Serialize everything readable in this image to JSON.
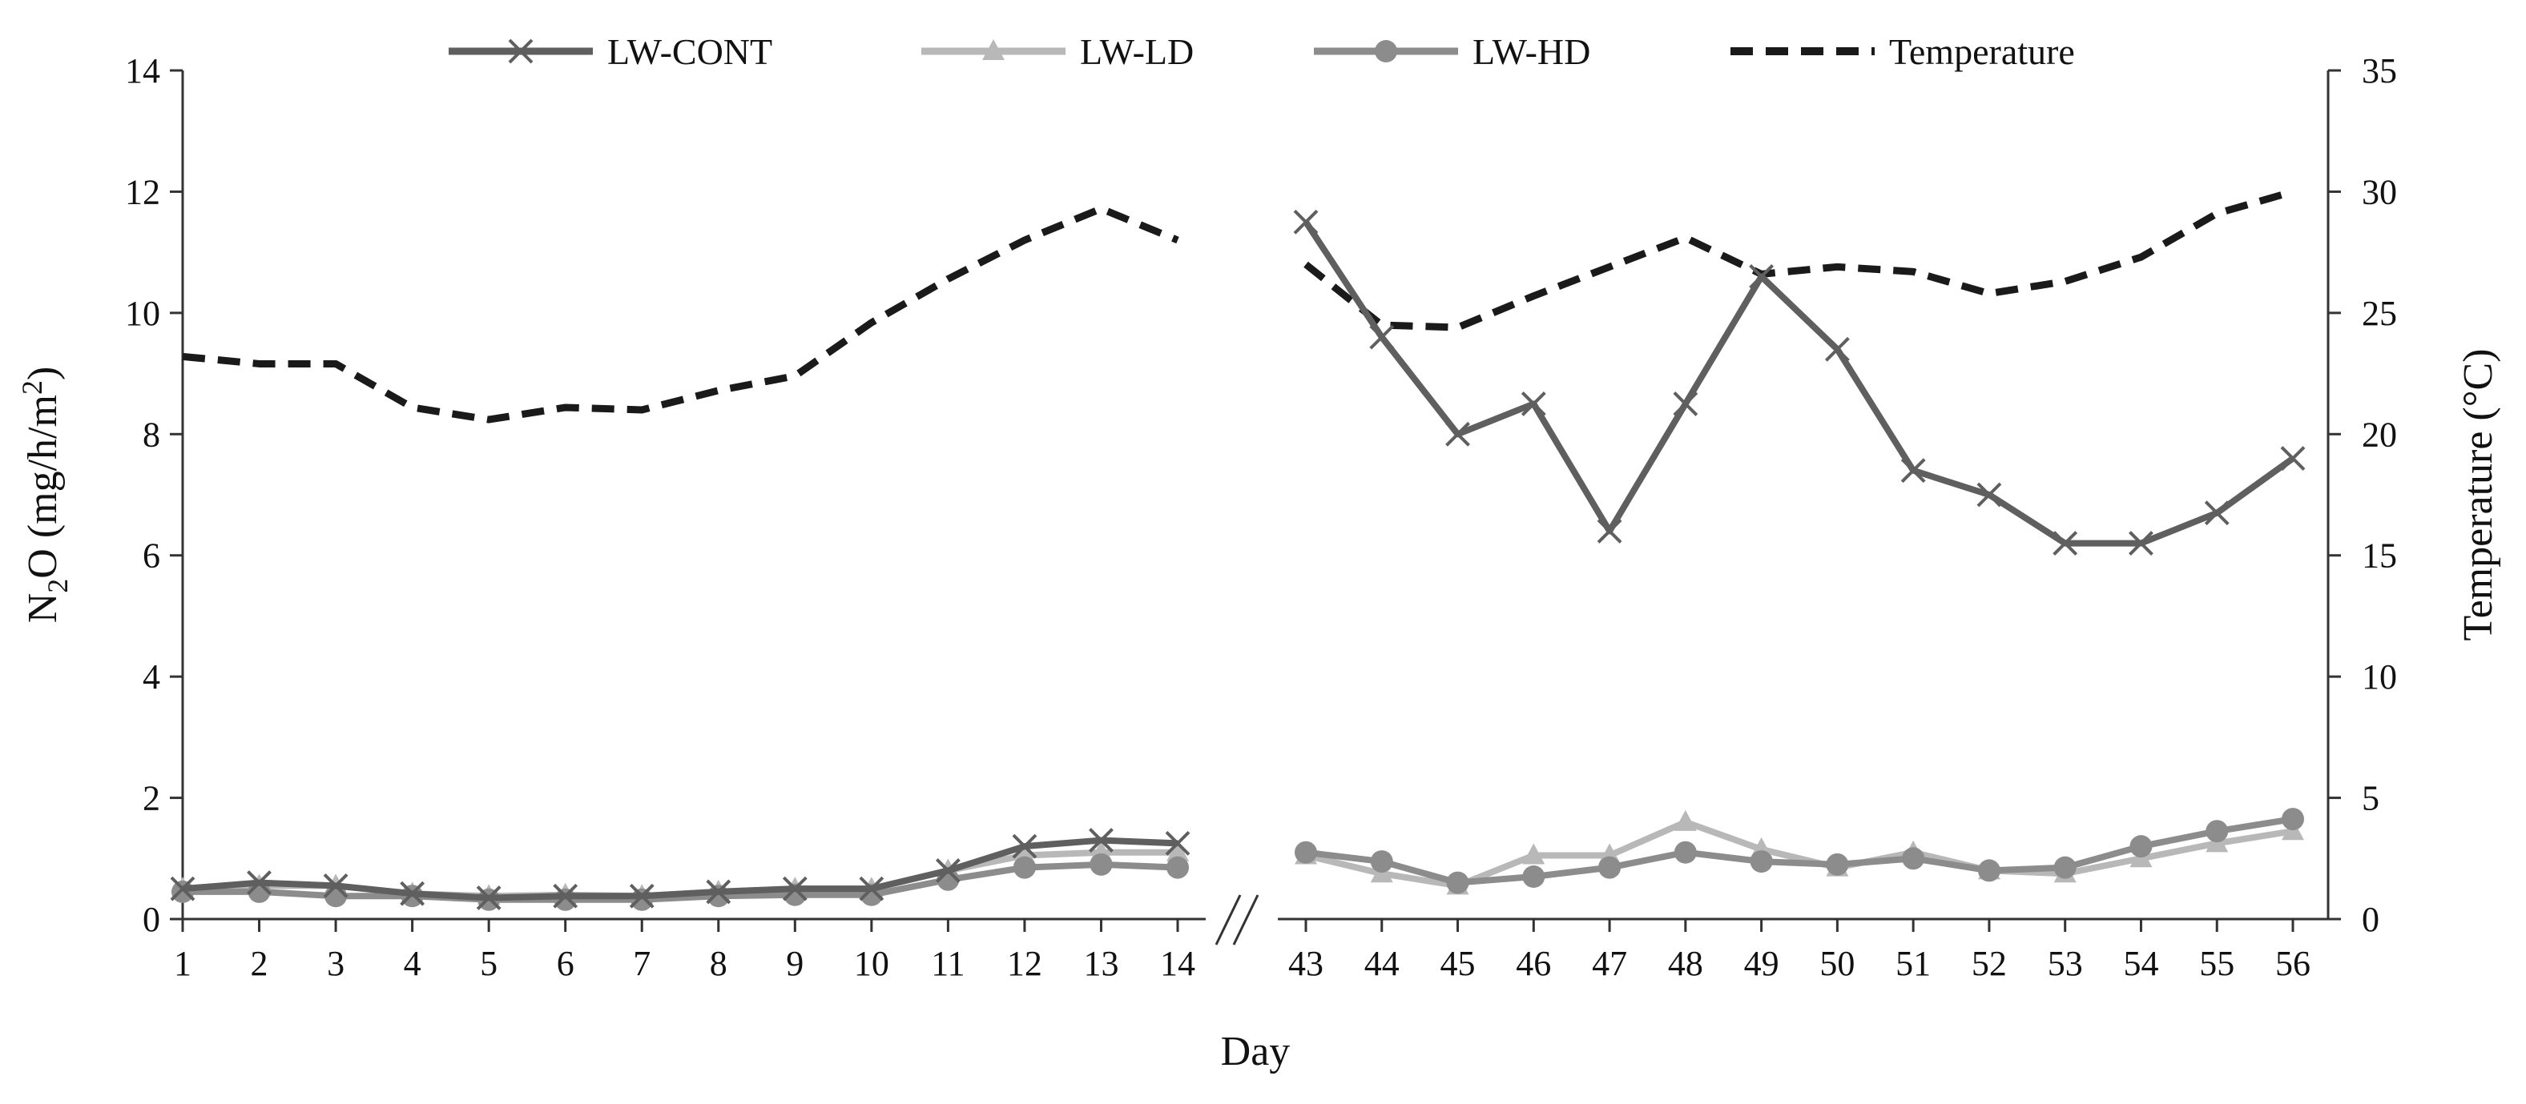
{
  "chart_data": {
    "type": "line",
    "title": "",
    "xlabel": "Day",
    "ylabel_left": {
      "main": "N",
      "sub": "2",
      "rest": "O (mg/h/m",
      "sup": "2",
      "close": ")"
    },
    "ylabel_right": "Temperature (°C)",
    "y_left_lim": [
      0,
      14
    ],
    "y_left_ticks": [
      "0",
      "2",
      "4",
      "6",
      "8",
      "10",
      "12",
      "14"
    ],
    "y_right_lim": [
      0,
      35
    ],
    "y_right_ticks": [
      "0",
      "5",
      "10",
      "15",
      "20",
      "25",
      "30",
      "35"
    ],
    "x_segments": [
      {
        "categories": [
          "1",
          "2",
          "3",
          "4",
          "5",
          "6",
          "7",
          "8",
          "9",
          "10",
          "11",
          "12",
          "13",
          "14"
        ]
      },
      {
        "categories": [
          "43",
          "44",
          "45",
          "46",
          "47",
          "48",
          "49",
          "50",
          "51",
          "52",
          "53",
          "54",
          "55",
          "56"
        ]
      }
    ],
    "axis_break_symbol": "//",
    "legend_position": "top",
    "series": [
      {
        "name": "LW-CONT",
        "axis": "left",
        "color": "#5f5f5f",
        "marker": "x",
        "style": "solid",
        "segments": [
          [
            0.5,
            0.6,
            0.55,
            0.42,
            0.35,
            0.38,
            0.38,
            0.45,
            0.5,
            0.5,
            0.8,
            1.2,
            1.3,
            1.25
          ],
          [
            11.5,
            9.6,
            8.0,
            8.5,
            6.4,
            8.5,
            10.6,
            9.4,
            7.4,
            7.0,
            6.2,
            6.2,
            6.7,
            7.6
          ]
        ]
      },
      {
        "name": "LW-LD",
        "axis": "left",
        "color": "#b8b8b8",
        "marker": "triangle",
        "style": "solid",
        "segments": [
          [
            0.5,
            0.55,
            0.55,
            0.42,
            0.38,
            0.4,
            0.38,
            0.45,
            0.5,
            0.5,
            0.8,
            1.05,
            1.1,
            1.1
          ],
          [
            1.05,
            0.75,
            0.55,
            1.05,
            1.05,
            1.6,
            1.15,
            0.85,
            1.1,
            0.8,
            0.75,
            1.0,
            1.25,
            1.45
          ]
        ]
      },
      {
        "name": "LW-HD",
        "axis": "left",
        "color": "#8c8c8c",
        "marker": "circle",
        "style": "solid",
        "segments": [
          [
            0.45,
            0.45,
            0.38,
            0.38,
            0.32,
            0.32,
            0.32,
            0.38,
            0.4,
            0.4,
            0.65,
            0.85,
            0.9,
            0.85
          ],
          [
            1.1,
            0.95,
            0.6,
            0.7,
            0.85,
            1.1,
            0.95,
            0.9,
            1.0,
            0.8,
            0.85,
            1.2,
            1.45,
            1.65
          ]
        ]
      },
      {
        "name": "Temperature",
        "axis": "right",
        "color": "#1a1a1a",
        "marker": "none",
        "style": "dashed",
        "segments": [
          [
            23.2,
            22.9,
            22.9,
            21.1,
            20.6,
            21.1,
            21.0,
            21.8,
            22.4,
            24.6,
            26.4,
            28.0,
            29.3,
            28.0
          ],
          [
            27.0,
            24.5,
            24.4,
            25.7,
            26.9,
            28.1,
            26.6,
            26.9,
            26.7,
            25.8,
            26.3,
            27.3,
            29.1,
            30.0
          ]
        ]
      }
    ]
  }
}
